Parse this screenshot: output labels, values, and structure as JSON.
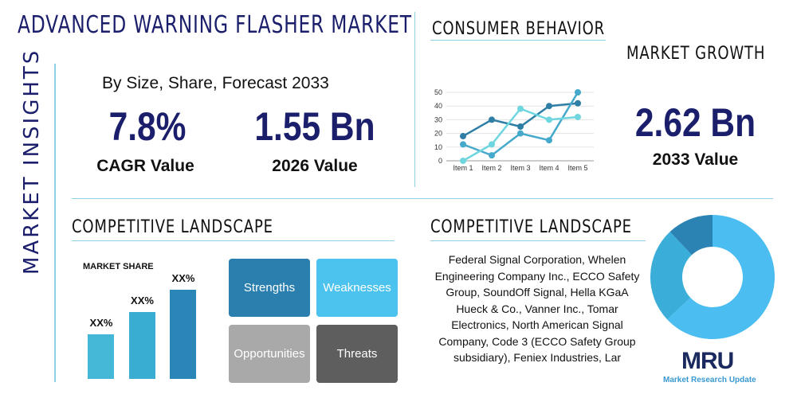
{
  "title": "ADVANCED WARNING FLASHER MARKET",
  "side_label": "MARKET INSIGHTS",
  "subtitle": "By Size, Share, Forecast 2033",
  "cagr": {
    "value": "7.8%",
    "label": "CAGR Value"
  },
  "value_2026": {
    "value": "1.55 Bn",
    "label": "2026 Value"
  },
  "consumer_behavior": "CONSUMER BEHAVIOR",
  "market_growth": "MARKET GROWTH",
  "value_2033": {
    "value": "2.62 Bn",
    "label": "2033 Value"
  },
  "competitive_left": "COMPETITIVE LANDSCAPE",
  "competitive_right": "COMPETITIVE LANDSCAPE",
  "market_share": {
    "title": "MARKET SHARE",
    "bars": [
      {
        "label": "XX%",
        "level": 0.5
      },
      {
        "label": "XX%",
        "level": 0.75
      },
      {
        "label": "XX%",
        "level": 1.0
      }
    ],
    "colors": [
      "#45b8d8",
      "#3aadd3",
      "#2a86b6"
    ]
  },
  "swot": [
    {
      "label": "Strengths",
      "color": "#2a7fae"
    },
    {
      "label": "Weaknesses",
      "color": "#4cc3ef"
    },
    {
      "label": "Opportunities",
      "color": "#a9a9a9"
    },
    {
      "label": "Threats",
      "color": "#5e5e5e"
    }
  ],
  "companies": "Federal Signal Corporation, Whelen Engineering Company Inc., ECCO Safety Group, SoundOff Signal, Hella KGaA Hueck & Co., Vanner Inc., Tomar Electronics, North American Signal Company, Code 3 (ECCO Safety Group subsidiary), Feniex Industries, Lar",
  "logo": {
    "text": "MRU",
    "caption": "Market Research Update"
  },
  "chart_data": [
    {
      "type": "line",
      "categories": [
        "Item 1",
        "Item 2",
        "Item 3",
        "Item 4",
        "Item 5"
      ],
      "ylim": [
        0,
        50
      ],
      "yticks": [
        0,
        10,
        20,
        30,
        40,
        50
      ],
      "grid": true,
      "series": [
        {
          "values": [
            18,
            30,
            25,
            40,
            42
          ],
          "color": "#2e7ea6"
        },
        {
          "values": [
            12,
            4,
            20,
            15,
            50
          ],
          "color": "#45a9cc"
        },
        {
          "values": [
            0,
            12,
            38,
            30,
            32
          ],
          "color": "#6fd6df"
        }
      ]
    },
    {
      "type": "pie",
      "donut": true,
      "values": [
        63,
        25,
        12
      ],
      "colors": [
        "#4bbdf0",
        "#3aaed8",
        "#2a83b3"
      ]
    }
  ]
}
